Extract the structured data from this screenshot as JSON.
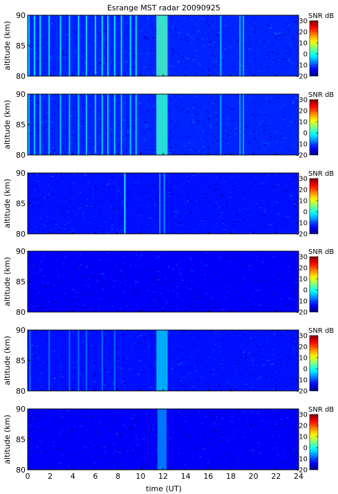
{
  "figure": {
    "title": "Esrange MST radar 20090925",
    "xlabel": "time (UT)",
    "colorbar_label": "SNR dB"
  },
  "chart_data": {
    "type": "heatmap",
    "title": "Esrange MST radar 20090925",
    "panel_count": 6,
    "x_axis": {
      "label": "time (UT)",
      "range": [
        0,
        24
      ],
      "ticks": [
        0,
        2,
        4,
        6,
        8,
        10,
        12,
        14,
        16,
        18,
        20,
        22,
        24
      ]
    },
    "y_axis": {
      "label": "altitude (km)",
      "range": [
        80,
        90
      ],
      "ticks": [
        80,
        85,
        90
      ]
    },
    "colorbar": {
      "label": "SNR dB",
      "range": [
        -20,
        30
      ],
      "ticks": [
        30,
        20,
        10,
        0,
        -10,
        -20
      ],
      "colormap": "jet"
    },
    "panels": [
      {
        "background_snr": -12,
        "features": [
          {
            "type": "vertical_stripes",
            "times_ut": [
              0.1,
              0.6,
              1.1,
              1.9,
              2.9,
              3.7,
              4.5,
              5.2,
              6.0,
              6.6,
              7.1,
              7.7,
              8.3,
              9.1,
              9.6
            ],
            "snr": -2
          },
          {
            "type": "broad_enhancement",
            "time_ut_range": [
              11.4,
              12.4
            ],
            "snr": 2
          },
          {
            "type": "vertical_stripes",
            "times_ut": [
              17.1,
              18.8,
              19.1
            ],
            "snr": -4
          }
        ]
      },
      {
        "background_snr": -12,
        "features": [
          {
            "type": "vertical_stripes",
            "times_ut": [
              0.1,
              0.6,
              1.1,
              1.9,
              2.9,
              3.7,
              4.5,
              5.2,
              6.0,
              6.6,
              7.1,
              7.7,
              8.3,
              9.1,
              9.6
            ],
            "snr": -3
          },
          {
            "type": "broad_enhancement",
            "time_ut_range": [
              11.4,
              12.4
            ],
            "snr": 1
          },
          {
            "type": "vertical_stripes",
            "times_ut": [
              17.1,
              18.8,
              19.1
            ],
            "snr": -5
          }
        ]
      },
      {
        "background_snr": -13,
        "features": [
          {
            "type": "vertical_stripes",
            "times_ut": [
              8.6
            ],
            "snr": 0
          },
          {
            "type": "vertical_stripes",
            "times_ut": [
              11.7,
              12.1
            ],
            "snr": -6
          }
        ]
      },
      {
        "background_snr": -14,
        "features": []
      },
      {
        "background_snr": -13,
        "features": [
          {
            "type": "vertical_stripes",
            "times_ut": [
              0.2,
              1.9,
              3.7,
              4.5,
              5.2,
              6.6,
              7.7
            ],
            "snr": -8
          },
          {
            "type": "broad_enhancement",
            "time_ut_range": [
              11.4,
              12.4
            ],
            "snr": -4
          }
        ]
      },
      {
        "background_snr": -14,
        "features": [
          {
            "type": "broad_enhancement",
            "time_ut_range": [
              11.5,
              12.3
            ],
            "snr": -7
          }
        ]
      }
    ]
  }
}
